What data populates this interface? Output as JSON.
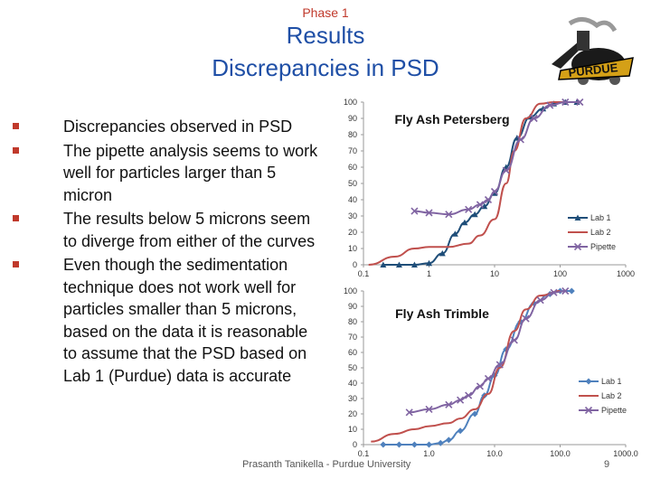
{
  "slide": {
    "phase": "Phase 1",
    "title_line1": "Results",
    "title_line2": "Discrepancies in PSD",
    "footer": "Prasanth Tanikella - Purdue University",
    "page_number": "9",
    "logo_text": "PURDUE",
    "bullets": [
      "Discrepancies observed in PSD",
      "The pipette analysis seems to work well for particles larger than 5 micron",
      "The results below 5 microns seem to diverge from either of the curves",
      "Even though the sedimentation technique does not work well for particles smaller than 5 microns, based on the data it is reasonable to assume that the PSD based on Lab 1 (Purdue) data is accurate"
    ]
  },
  "chart_data": [
    {
      "type": "line",
      "title": "Fly Ash Petersberg",
      "x_scale": "log",
      "xlim": [
        0.1,
        1000
      ],
      "ylim": [
        0,
        100
      ],
      "x_ticks": [
        "0.1",
        "1",
        "10",
        "100",
        "1000"
      ],
      "y_ticks": [
        "0",
        "10",
        "20",
        "30",
        "40",
        "50",
        "60",
        "70",
        "80",
        "90",
        "100"
      ],
      "grid": false,
      "legend_position": "right",
      "series": [
        {
          "name": "Lab 1",
          "color": "#1f4e79",
          "marker": "triangle",
          "x": [
            0.2,
            0.35,
            0.6,
            1,
            1.6,
            2.5,
            3.5,
            5,
            7,
            10,
            15,
            22,
            35,
            55,
            80,
            120,
            180
          ],
          "y": [
            0,
            0,
            0,
            1,
            7,
            19,
            26,
            31,
            36,
            44,
            60,
            78,
            91,
            96,
            99,
            100,
            100
          ]
        },
        {
          "name": "Lab 2",
          "color": "#c0504d",
          "marker": "none",
          "x": [
            0.12,
            0.3,
            0.6,
            1,
            2,
            4,
            6,
            10,
            15,
            20,
            30,
            50,
            80,
            120,
            200
          ],
          "y": [
            0,
            5,
            10,
            11,
            11,
            13,
            18,
            28,
            50,
            70,
            90,
            99,
            100,
            100,
            100
          ]
        },
        {
          "name": "Pipette",
          "color": "#8064a2",
          "marker": "x",
          "x": [
            0.6,
            1,
            2,
            4,
            6,
            8,
            10,
            15,
            25,
            40,
            70,
            120,
            200
          ],
          "y": [
            33,
            32,
            31,
            34,
            37,
            40,
            45,
            58,
            77,
            90,
            98,
            100,
            100
          ]
        }
      ]
    },
    {
      "type": "line",
      "title": "Fly Ash Trimble",
      "x_scale": "log",
      "xlim": [
        0.1,
        1000
      ],
      "ylim": [
        0,
        100
      ],
      "x_ticks": [
        "0.1",
        "1.0",
        "10.0",
        "100.0",
        "1000.0"
      ],
      "y_ticks": [
        "0",
        "10",
        "20",
        "30",
        "40",
        "50",
        "60",
        "70",
        "80",
        "90",
        "100"
      ],
      "grid": false,
      "legend_position": "right",
      "series": [
        {
          "name": "Lab 1",
          "color": "#4f81bd",
          "marker": "diamond",
          "x": [
            0.2,
            0.35,
            0.6,
            1,
            1.5,
            2,
            3,
            5,
            7,
            10,
            15,
            25,
            40,
            70,
            100,
            150
          ],
          "y": [
            0,
            0,
            0,
            0,
            1,
            3,
            9,
            20,
            32,
            45,
            62,
            80,
            92,
            98,
            100,
            100
          ]
        },
        {
          "name": "Lab 2",
          "color": "#c0504d",
          "marker": "none",
          "x": [
            0.13,
            0.3,
            0.6,
            1,
            2,
            3,
            5,
            8,
            12,
            20,
            30,
            50,
            100
          ],
          "y": [
            2,
            7,
            10,
            12,
            14,
            17,
            23,
            33,
            50,
            74,
            88,
            97,
            100
          ]
        },
        {
          "name": "Pipette",
          "color": "#8064a2",
          "marker": "x",
          "x": [
            0.5,
            1,
            2,
            3,
            4,
            6,
            8,
            12,
            20,
            30,
            50,
            80,
            120
          ],
          "y": [
            21,
            23,
            26,
            29,
            32,
            38,
            43,
            52,
            68,
            82,
            94,
            99,
            100
          ]
        }
      ]
    }
  ]
}
